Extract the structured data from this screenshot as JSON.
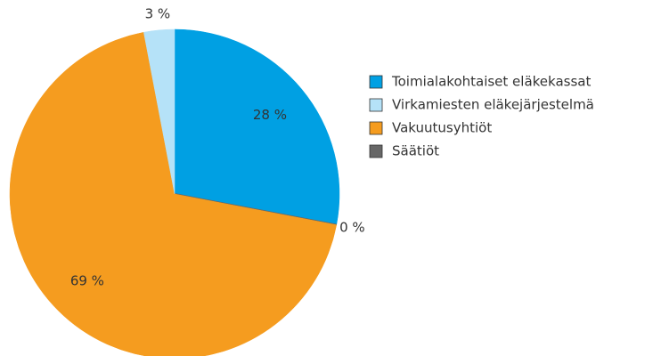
{
  "chart_data": {
    "type": "pie",
    "categories": [
      "Toimialakohtaiset eläkekassat",
      "Virkamiesten eläkejärjestelmä",
      "Vakuutusyhtiöt",
      "Säätiöt"
    ],
    "values": [
      28,
      3,
      69,
      0
    ],
    "value_labels": [
      "28 %",
      "3 %",
      "69 %",
      "0 %"
    ],
    "colors": [
      "#00a0e3",
      "#b5e2f8",
      "#f59c1f",
      "#676767"
    ],
    "legend": "right"
  }
}
